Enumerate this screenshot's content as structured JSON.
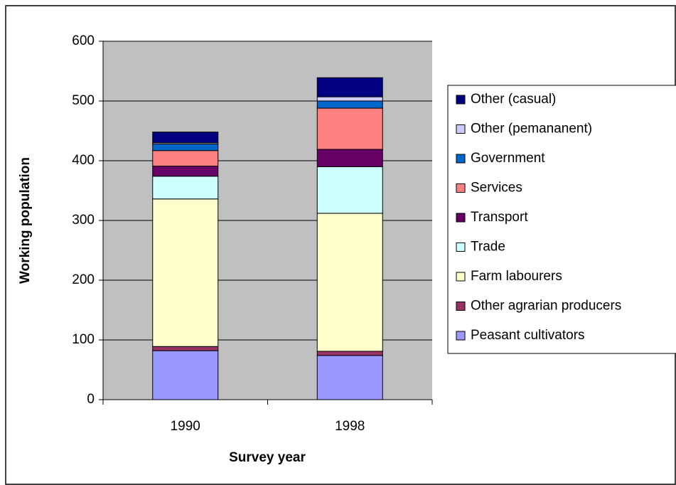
{
  "chart_data": {
    "type": "stacked-bar",
    "x_label": "Survey year",
    "y_label": "Working population",
    "categories": [
      "1990",
      "1998"
    ],
    "series": [
      {
        "name": "Peasant cultivators",
        "color": "#9999ff",
        "values": [
          82,
          74
        ]
      },
      {
        "name": "Other agrarian producers",
        "color": "#993366",
        "values": [
          7,
          7
        ]
      },
      {
        "name": "Farm labourers",
        "color": "#ffffcc",
        "values": [
          247,
          231
        ]
      },
      {
        "name": "Trade",
        "color": "#ccffff",
        "values": [
          38,
          78
        ]
      },
      {
        "name": "Transport",
        "color": "#660066",
        "values": [
          17,
          29
        ]
      },
      {
        "name": "Services",
        "color": "#ff8080",
        "values": [
          26,
          69
        ]
      },
      {
        "name": "Government",
        "color": "#0066cc",
        "values": [
          11,
          12
        ]
      },
      {
        "name": "Other (pemananent)",
        "color": "#ccccff",
        "values": [
          2,
          7
        ]
      },
      {
        "name": "Other (casual)",
        "color": "#000080",
        "values": [
          18,
          32
        ]
      }
    ],
    "ylim": [
      0,
      600
    ],
    "yticks": [
      0,
      100,
      200,
      300,
      400,
      500,
      600
    ],
    "grid": true,
    "legend": "right"
  }
}
